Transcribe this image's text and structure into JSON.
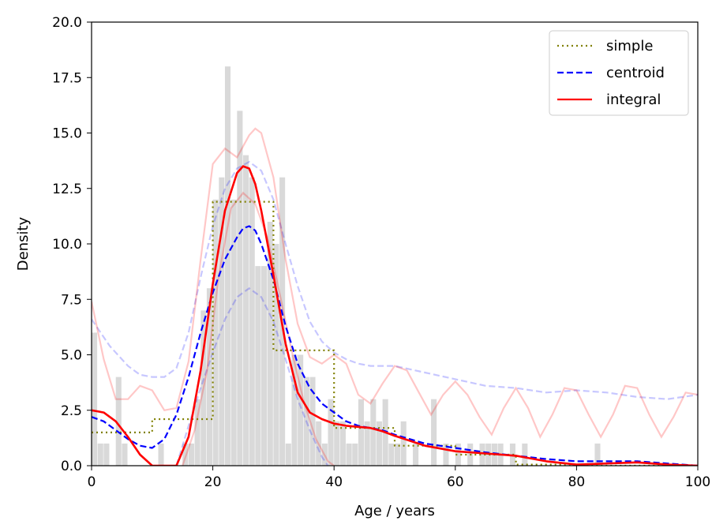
{
  "chart_data": {
    "type": "line",
    "xlabel": "Age / years",
    "ylabel": "Density",
    "xlim": [
      0,
      100
    ],
    "ylim": [
      0,
      20
    ],
    "x_ticks": [
      "0",
      "20",
      "40",
      "60",
      "80",
      "100"
    ],
    "y_ticks": [
      "0.0",
      "2.5",
      "5.0",
      "7.5",
      "10.0",
      "12.5",
      "15.0",
      "17.5",
      "20.0"
    ],
    "grid": false,
    "legend_position": "top-right",
    "legend": [
      {
        "label": "simple",
        "color": "#808000",
        "style": "dotted"
      },
      {
        "label": "centroid",
        "color": "#0000ff",
        "style": "dashed"
      },
      {
        "label": "integral",
        "color": "#ff0000",
        "style": "solid"
      }
    ],
    "histogram": {
      "color": "#d9d9d9",
      "bin_width": 1,
      "bins": [
        {
          "x": 0,
          "y": 6
        },
        {
          "x": 1,
          "y": 1
        },
        {
          "x": 2,
          "y": 1
        },
        {
          "x": 4,
          "y": 4
        },
        {
          "x": 5,
          "y": 1
        },
        {
          "x": 11,
          "y": 1
        },
        {
          "x": 15,
          "y": 1
        },
        {
          "x": 16,
          "y": 1
        },
        {
          "x": 17,
          "y": 3
        },
        {
          "x": 18,
          "y": 7
        },
        {
          "x": 19,
          "y": 8
        },
        {
          "x": 20,
          "y": 12
        },
        {
          "x": 21,
          "y": 13
        },
        {
          "x": 22,
          "y": 18
        },
        {
          "x": 23,
          "y": 12
        },
        {
          "x": 24,
          "y": 16
        },
        {
          "x": 25,
          "y": 14
        },
        {
          "x": 26,
          "y": 13
        },
        {
          "x": 27,
          "y": 9
        },
        {
          "x": 28,
          "y": 9
        },
        {
          "x": 29,
          "y": 11
        },
        {
          "x": 30,
          "y": 10
        },
        {
          "x": 31,
          "y": 13
        },
        {
          "x": 32,
          "y": 1
        },
        {
          "x": 33,
          "y": 5
        },
        {
          "x": 34,
          "y": 5
        },
        {
          "x": 35,
          "y": 4
        },
        {
          "x": 36,
          "y": 4
        },
        {
          "x": 37,
          "y": 2
        },
        {
          "x": 38,
          "y": 1
        },
        {
          "x": 39,
          "y": 3
        },
        {
          "x": 40,
          "y": 2
        },
        {
          "x": 41,
          "y": 2
        },
        {
          "x": 42,
          "y": 1
        },
        {
          "x": 43,
          "y": 1
        },
        {
          "x": 44,
          "y": 3
        },
        {
          "x": 45,
          "y": 2
        },
        {
          "x": 46,
          "y": 3
        },
        {
          "x": 47,
          "y": 2
        },
        {
          "x": 48,
          "y": 3
        },
        {
          "x": 49,
          "y": 1
        },
        {
          "x": 50,
          "y": 1
        },
        {
          "x": 51,
          "y": 2
        },
        {
          "x": 53,
          "y": 1
        },
        {
          "x": 56,
          "y": 3
        },
        {
          "x": 58,
          "y": 1
        },
        {
          "x": 60,
          "y": 1
        },
        {
          "x": 62,
          "y": 1
        },
        {
          "x": 64,
          "y": 1
        },
        {
          "x": 65,
          "y": 1
        },
        {
          "x": 66,
          "y": 1
        },
        {
          "x": 67,
          "y": 1
        },
        {
          "x": 69,
          "y": 1
        },
        {
          "x": 71,
          "y": 1
        },
        {
          "x": 83,
          "y": 1
        }
      ]
    },
    "series": [
      {
        "name": "simple",
        "color": "#808000",
        "style": "dotted",
        "x": [
          0,
          10,
          10,
          20,
          20,
          30,
          30,
          40,
          40,
          50,
          50,
          60,
          60,
          70,
          70,
          80,
          80,
          100
        ],
        "y": [
          1.5,
          1.5,
          2.1,
          2.1,
          11.9,
          11.9,
          5.2,
          5.2,
          1.7,
          1.7,
          0.9,
          0.9,
          0.5,
          0.5,
          0.05,
          0.05,
          0.0,
          0.0
        ]
      },
      {
        "name": "centroid",
        "color": "#0000ff",
        "style": "dashed",
        "x": [
          0,
          2,
          4,
          6,
          8,
          10,
          12,
          14,
          16,
          18,
          20,
          22,
          24,
          25,
          26,
          27,
          28,
          30,
          32,
          34,
          36,
          38,
          40,
          42,
          44,
          46,
          48,
          50,
          55,
          60,
          65,
          70,
          75,
          80,
          85,
          90,
          95,
          100
        ],
        "y": [
          2.2,
          2.0,
          1.6,
          1.2,
          0.9,
          0.8,
          1.2,
          2.3,
          4.0,
          6.0,
          7.8,
          9.3,
          10.3,
          10.7,
          10.8,
          10.6,
          10.0,
          8.4,
          6.3,
          4.6,
          3.5,
          2.8,
          2.4,
          2.0,
          1.8,
          1.7,
          1.6,
          1.4,
          1.0,
          0.8,
          0.6,
          0.45,
          0.3,
          0.2,
          0.2,
          0.2,
          0.1,
          0.0
        ]
      },
      {
        "name": "integral",
        "color": "#ff0000",
        "style": "solid",
        "x": [
          0,
          2,
          4,
          6,
          8,
          10,
          12,
          14,
          16,
          18,
          20,
          22,
          24,
          25,
          26,
          27,
          28,
          30,
          32,
          34,
          36,
          38,
          40,
          42,
          44,
          46,
          48,
          50,
          55,
          60,
          65,
          70,
          75,
          80,
          85,
          90,
          95,
          100
        ],
        "y": [
          2.5,
          2.4,
          2.0,
          1.3,
          0.5,
          0.0,
          0.0,
          0.0,
          1.3,
          4.3,
          8.2,
          11.5,
          13.2,
          13.5,
          13.4,
          12.7,
          11.5,
          8.6,
          5.5,
          3.3,
          2.4,
          2.1,
          1.9,
          1.8,
          1.75,
          1.7,
          1.55,
          1.35,
          0.9,
          0.65,
          0.55,
          0.45,
          0.2,
          0.05,
          0.1,
          0.15,
          0.05,
          0.0
        ]
      }
    ],
    "bands": [
      {
        "name": "centroid",
        "color": "#0000ff",
        "style": "dashed",
        "opacity": 0.22,
        "upper": {
          "x": [
            0,
            3,
            6,
            8,
            10,
            12,
            14,
            16,
            18,
            20,
            22,
            24,
            26,
            28,
            30,
            32,
            34,
            36,
            38,
            40,
            42,
            44,
            46,
            48,
            50,
            55,
            60,
            65,
            70,
            75,
            80,
            85,
            90,
            95,
            100
          ],
          "y": [
            6.6,
            5.4,
            4.5,
            4.1,
            4.0,
            4.0,
            4.4,
            6.0,
            8.5,
            10.8,
            12.5,
            13.4,
            13.7,
            13.3,
            12.0,
            10.0,
            8.1,
            6.5,
            5.6,
            5.1,
            4.8,
            4.6,
            4.5,
            4.5,
            4.5,
            4.2,
            3.9,
            3.6,
            3.5,
            3.3,
            3.4,
            3.3,
            3.1,
            3.0,
            3.2
          ]
        },
        "lower": {
          "x": [
            14,
            16,
            18,
            20,
            22,
            24,
            26,
            28,
            30,
            32,
            34,
            36,
            38,
            39
          ],
          "y": [
            0.0,
            1.8,
            3.5,
            5.1,
            6.6,
            7.6,
            8.0,
            7.6,
            6.5,
            4.8,
            3.0,
            1.6,
            0.4,
            0.0
          ]
        }
      },
      {
        "name": "integral",
        "color": "#ff0000",
        "style": "solid",
        "opacity": 0.22,
        "upper": {
          "x": [
            0,
            2,
            4,
            6,
            8,
            10,
            12,
            14,
            16,
            18,
            20,
            22,
            24,
            26,
            27,
            28,
            30,
            32,
            34,
            36,
            38,
            40,
            42,
            44,
            46,
            48,
            50,
            52,
            54,
            56,
            58,
            60,
            62,
            64,
            66,
            68,
            70,
            72,
            74,
            76,
            78,
            80,
            82,
            84,
            86,
            88,
            90,
            92,
            94,
            96,
            98,
            100
          ],
          "y": [
            7.4,
            4.8,
            3.0,
            3.0,
            3.6,
            3.4,
            2.5,
            2.6,
            4.7,
            9.3,
            13.6,
            14.3,
            13.9,
            14.9,
            15.2,
            15.0,
            13.0,
            9.3,
            6.4,
            4.9,
            4.6,
            5.0,
            4.6,
            3.2,
            2.8,
            3.7,
            4.5,
            4.3,
            3.3,
            2.3,
            3.2,
            3.8,
            3.2,
            2.2,
            1.4,
            2.6,
            3.5,
            2.6,
            1.3,
            2.3,
            3.5,
            3.4,
            2.3,
            1.3,
            2.3,
            3.6,
            3.5,
            2.3,
            1.3,
            2.2,
            3.3,
            3.2
          ]
        },
        "lower": {
          "x": [
            15,
            17,
            19,
            21,
            23,
            25,
            27,
            29,
            31,
            33,
            35,
            37,
            39,
            40
          ],
          "y": [
            0.0,
            1.6,
            4.2,
            8.6,
            11.6,
            12.3,
            11.8,
            10.3,
            7.8,
            5.2,
            2.9,
            1.2,
            0.2,
            0.0
          ]
        }
      }
    ]
  }
}
